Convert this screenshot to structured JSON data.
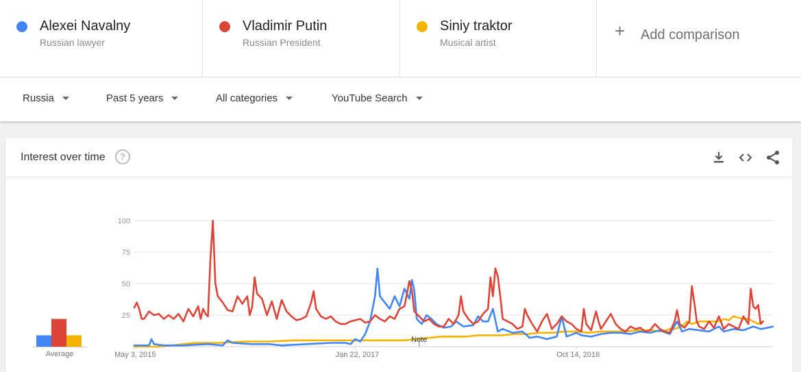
{
  "colors": {
    "blue": "#4285f4",
    "red": "#db4437",
    "yellow": "#f4b400"
  },
  "terms": [
    {
      "name": "Alexei Navalny",
      "subtitle": "Russian lawyer",
      "color": "#4285f4"
    },
    {
      "name": "Vladimir Putin",
      "subtitle": "Russian President",
      "color": "#db4437"
    },
    {
      "name": "Siniy traktor",
      "subtitle": "Musical artist",
      "color": "#f4b400"
    }
  ],
  "add_comparison": {
    "icon": "plus-icon",
    "label": "Add comparison"
  },
  "filters": [
    {
      "label": "Russia"
    },
    {
      "label": "Past 5 years"
    },
    {
      "label": "All categories"
    },
    {
      "label": "YouTube Search"
    }
  ],
  "card": {
    "title": "Interest over time",
    "help_icon": "?",
    "tools": [
      "download-icon",
      "embed-icon",
      "share-icon"
    ],
    "average_label": "Average",
    "note_label": "Note"
  },
  "chart_data": {
    "type": "line",
    "ylim": [
      0,
      100
    ],
    "yticks": [
      100,
      75,
      50,
      25
    ],
    "x_tick_labels": [
      "May 3, 2015",
      "Jan 22, 2017",
      "Oct 14, 2018"
    ],
    "x_tick_weeks": [
      0,
      90,
      180
    ],
    "x_range_weeks": [
      0,
      260
    ],
    "note_week": 116,
    "averages": [
      {
        "name": "Alexei Navalny",
        "value": 9
      },
      {
        "name": "Vladimir Putin",
        "value": 22
      },
      {
        "name": "Siniy traktor",
        "value": 9
      }
    ],
    "series": [
      {
        "name": "Alexei Navalny",
        "color": "#4285f4",
        "knots": [
          [
            0,
            1
          ],
          [
            4,
            1
          ],
          [
            6,
            1
          ],
          [
            7,
            6
          ],
          [
            8,
            2
          ],
          [
            12,
            1
          ],
          [
            20,
            1
          ],
          [
            30,
            2
          ],
          [
            36,
            1
          ],
          [
            38,
            5
          ],
          [
            40,
            3
          ],
          [
            48,
            2
          ],
          [
            55,
            2
          ],
          [
            60,
            1
          ],
          [
            70,
            2
          ],
          [
            80,
            3
          ],
          [
            86,
            3
          ],
          [
            88,
            2
          ],
          [
            90,
            6
          ],
          [
            92,
            4
          ],
          [
            94,
            10
          ],
          [
            96,
            20
          ],
          [
            98,
            40
          ],
          [
            99,
            62
          ],
          [
            100,
            40
          ],
          [
            102,
            35
          ],
          [
            104,
            30
          ],
          [
            106,
            40
          ],
          [
            108,
            32
          ],
          [
            110,
            46
          ],
          [
            112,
            38
          ],
          [
            113,
            53
          ],
          [
            114,
            45
          ],
          [
            115,
            22
          ],
          [
            117,
            18
          ],
          [
            119,
            25
          ],
          [
            121,
            22
          ],
          [
            123,
            18
          ],
          [
            126,
            15
          ],
          [
            129,
            16
          ],
          [
            131,
            20
          ],
          [
            134,
            16
          ],
          [
            138,
            17
          ],
          [
            140,
            24
          ],
          [
            142,
            20
          ],
          [
            144,
            20
          ],
          [
            146,
            30
          ],
          [
            148,
            12
          ],
          [
            150,
            14
          ],
          [
            154,
            11
          ],
          [
            158,
            12
          ],
          [
            161,
            7
          ],
          [
            164,
            8
          ],
          [
            168,
            6
          ],
          [
            172,
            8
          ],
          [
            174,
            24
          ],
          [
            176,
            8
          ],
          [
            180,
            11
          ],
          [
            182,
            9
          ],
          [
            186,
            8
          ],
          [
            190,
            10
          ],
          [
            194,
            11
          ],
          [
            198,
            11
          ],
          [
            202,
            10
          ],
          [
            206,
            12
          ],
          [
            210,
            11
          ],
          [
            214,
            13
          ],
          [
            218,
            10
          ],
          [
            221,
            20
          ],
          [
            223,
            12
          ],
          [
            226,
            14
          ],
          [
            230,
            13
          ],
          [
            234,
            12
          ],
          [
            238,
            16
          ],
          [
            240,
            12
          ],
          [
            244,
            14
          ],
          [
            248,
            13
          ],
          [
            252,
            16
          ],
          [
            255,
            14
          ],
          [
            258,
            15
          ],
          [
            260,
            16
          ]
        ]
      },
      {
        "name": "Vladimir Putin",
        "color": "#db4437",
        "knots": [
          [
            0,
            31
          ],
          [
            1,
            35
          ],
          [
            2,
            30
          ],
          [
            3,
            22
          ],
          [
            4,
            22
          ],
          [
            6,
            28
          ],
          [
            8,
            25
          ],
          [
            10,
            26
          ],
          [
            12,
            22
          ],
          [
            14,
            25
          ],
          [
            16,
            22
          ],
          [
            18,
            26
          ],
          [
            20,
            20
          ],
          [
            22,
            30
          ],
          [
            24,
            24
          ],
          [
            26,
            32
          ],
          [
            27,
            22
          ],
          [
            28,
            30
          ],
          [
            29,
            26
          ],
          [
            30,
            24
          ],
          [
            31,
            70
          ],
          [
            32,
            100
          ],
          [
            33,
            50
          ],
          [
            34,
            40
          ],
          [
            36,
            35
          ],
          [
            38,
            29
          ],
          [
            40,
            28
          ],
          [
            42,
            40
          ],
          [
            44,
            34
          ],
          [
            46,
            40
          ],
          [
            47,
            25
          ],
          [
            48,
            32
          ],
          [
            49,
            55
          ],
          [
            50,
            42
          ],
          [
            52,
            38
          ],
          [
            54,
            25
          ],
          [
            56,
            36
          ],
          [
            58,
            22
          ],
          [
            60,
            37
          ],
          [
            62,
            28
          ],
          [
            64,
            24
          ],
          [
            66,
            21
          ],
          [
            68,
            22
          ],
          [
            70,
            24
          ],
          [
            72,
            35
          ],
          [
            73,
            44
          ],
          [
            74,
            30
          ],
          [
            76,
            24
          ],
          [
            78,
            22
          ],
          [
            80,
            24
          ],
          [
            82,
            20
          ],
          [
            84,
            18
          ],
          [
            86,
            18
          ],
          [
            88,
            20
          ],
          [
            90,
            21
          ],
          [
            92,
            22
          ],
          [
            94,
            19
          ],
          [
            96,
            20
          ],
          [
            98,
            25
          ],
          [
            100,
            22
          ],
          [
            102,
            20
          ],
          [
            104,
            24
          ],
          [
            106,
            22
          ],
          [
            108,
            30
          ],
          [
            110,
            32
          ],
          [
            112,
            52
          ],
          [
            113,
            45
          ],
          [
            114,
            28
          ],
          [
            116,
            24
          ],
          [
            118,
            20
          ],
          [
            120,
            22
          ],
          [
            122,
            18
          ],
          [
            124,
            16
          ],
          [
            126,
            16
          ],
          [
            128,
            22
          ],
          [
            130,
            18
          ],
          [
            132,
            25
          ],
          [
            133,
            40
          ],
          [
            134,
            28
          ],
          [
            136,
            22
          ],
          [
            138,
            18
          ],
          [
            140,
            20
          ],
          [
            142,
            26
          ],
          [
            144,
            30
          ],
          [
            145,
            55
          ],
          [
            146,
            40
          ],
          [
            147,
            62
          ],
          [
            148,
            56
          ],
          [
            149,
            40
          ],
          [
            150,
            22
          ],
          [
            152,
            20
          ],
          [
            154,
            18
          ],
          [
            156,
            14
          ],
          [
            158,
            16
          ],
          [
            159,
            30
          ],
          [
            160,
            25
          ],
          [
            162,
            18
          ],
          [
            164,
            12
          ],
          [
            166,
            20
          ],
          [
            168,
            26
          ],
          [
            170,
            14
          ],
          [
            172,
            18
          ],
          [
            174,
            24
          ],
          [
            176,
            20
          ],
          [
            178,
            18
          ],
          [
            180,
            14
          ],
          [
            182,
            12
          ],
          [
            183,
            30
          ],
          [
            184,
            18
          ],
          [
            186,
            13
          ],
          [
            188,
            28
          ],
          [
            189,
            20
          ],
          [
            190,
            14
          ],
          [
            192,
            20
          ],
          [
            194,
            26
          ],
          [
            196,
            18
          ],
          [
            198,
            14
          ],
          [
            200,
            12
          ],
          [
            202,
            16
          ],
          [
            204,
            14
          ],
          [
            206,
            15
          ],
          [
            208,
            12
          ],
          [
            210,
            13
          ],
          [
            212,
            18
          ],
          [
            214,
            14
          ],
          [
            216,
            12
          ],
          [
            218,
            11
          ],
          [
            220,
            20
          ],
          [
            221,
            29
          ],
          [
            222,
            18
          ],
          [
            224,
            15
          ],
          [
            226,
            20
          ],
          [
            227,
            48
          ],
          [
            228,
            35
          ],
          [
            229,
            20
          ],
          [
            230,
            16
          ],
          [
            232,
            14
          ],
          [
            234,
            20
          ],
          [
            236,
            15
          ],
          [
            238,
            24
          ],
          [
            240,
            14
          ],
          [
            242,
            18
          ],
          [
            244,
            16
          ],
          [
            246,
            14
          ],
          [
            248,
            24
          ],
          [
            250,
            18
          ],
          [
            251,
            46
          ],
          [
            252,
            32
          ],
          [
            253,
            30
          ],
          [
            254,
            33
          ],
          [
            255,
            18
          ],
          [
            256,
            20
          ]
        ]
      },
      {
        "name": "Siniy traktor",
        "color": "#f4b400",
        "knots": [
          [
            0,
            0
          ],
          [
            10,
            0
          ],
          [
            15,
            1
          ],
          [
            20,
            2
          ],
          [
            25,
            3
          ],
          [
            30,
            3
          ],
          [
            35,
            3
          ],
          [
            45,
            4
          ],
          [
            55,
            4
          ],
          [
            65,
            5
          ],
          [
            75,
            5
          ],
          [
            85,
            5
          ],
          [
            95,
            5
          ],
          [
            105,
            5
          ],
          [
            110,
            5
          ],
          [
            115,
            6
          ],
          [
            120,
            7
          ],
          [
            125,
            8
          ],
          [
            130,
            8
          ],
          [
            135,
            8
          ],
          [
            140,
            9
          ],
          [
            145,
            9
          ],
          [
            150,
            9
          ],
          [
            155,
            10
          ],
          [
            160,
            10
          ],
          [
            165,
            11
          ],
          [
            170,
            11
          ],
          [
            175,
            12
          ],
          [
            180,
            12
          ],
          [
            185,
            11
          ],
          [
            190,
            12
          ],
          [
            195,
            12
          ],
          [
            200,
            12
          ],
          [
            205,
            13
          ],
          [
            210,
            13
          ],
          [
            215,
            12
          ],
          [
            218,
            14
          ],
          [
            220,
            14
          ],
          [
            223,
            16
          ],
          [
            225,
            20
          ],
          [
            227,
            18
          ],
          [
            230,
            20
          ],
          [
            235,
            20
          ],
          [
            238,
            20
          ],
          [
            240,
            22
          ],
          [
            242,
            21
          ],
          [
            244,
            24
          ],
          [
            246,
            23
          ],
          [
            248,
            22
          ],
          [
            250,
            22
          ],
          [
            252,
            20
          ],
          [
            254,
            18
          ],
          [
            256,
            20
          ]
        ]
      }
    ]
  }
}
